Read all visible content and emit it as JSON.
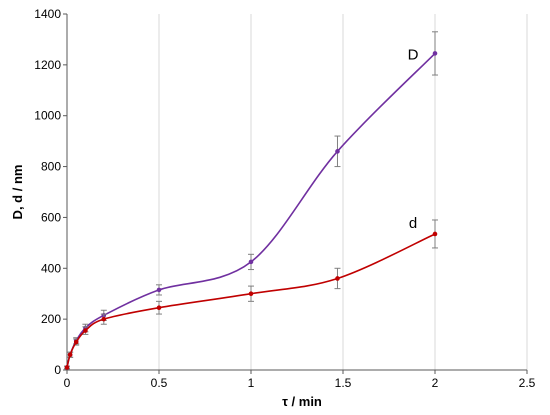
{
  "chart_data": {
    "type": "line",
    "xlabel": "τ / min",
    "ylabel": "D, d / nm",
    "xlim": [
      0,
      2.5
    ],
    "ylim": [
      0,
      1400
    ],
    "xticks": [
      0,
      0.5,
      1,
      1.5,
      2,
      2.5
    ],
    "xtick_labels": [
      "0",
      "0.5",
      "1",
      "1.5",
      "2",
      "2.5"
    ],
    "yticks": [
      0,
      200,
      400,
      600,
      800,
      1000,
      1200,
      1400
    ],
    "ytick_labels": [
      "0",
      "200",
      "400",
      "600",
      "800",
      "1000",
      "1200",
      "1400"
    ],
    "grid": "vertical",
    "series": [
      {
        "name": "D",
        "color": "#7030a0",
        "x": [
          0,
          0.017,
          0.05,
          0.1,
          0.2,
          0.5,
          1,
          1.47,
          2
        ],
        "y": [
          10,
          60,
          115,
          165,
          215,
          315,
          425,
          860,
          1245
        ],
        "err": [
          5,
          10,
          12,
          15,
          20,
          20,
          30,
          60,
          85
        ]
      },
      {
        "name": "d",
        "color": "#c00000",
        "x": [
          0,
          0.017,
          0.05,
          0.1,
          0.2,
          0.5,
          1,
          1.47,
          2
        ],
        "y": [
          10,
          60,
          110,
          155,
          200,
          245,
          300,
          360,
          535
        ],
        "err": [
          5,
          10,
          12,
          15,
          20,
          25,
          30,
          40,
          55
        ]
      }
    ]
  }
}
